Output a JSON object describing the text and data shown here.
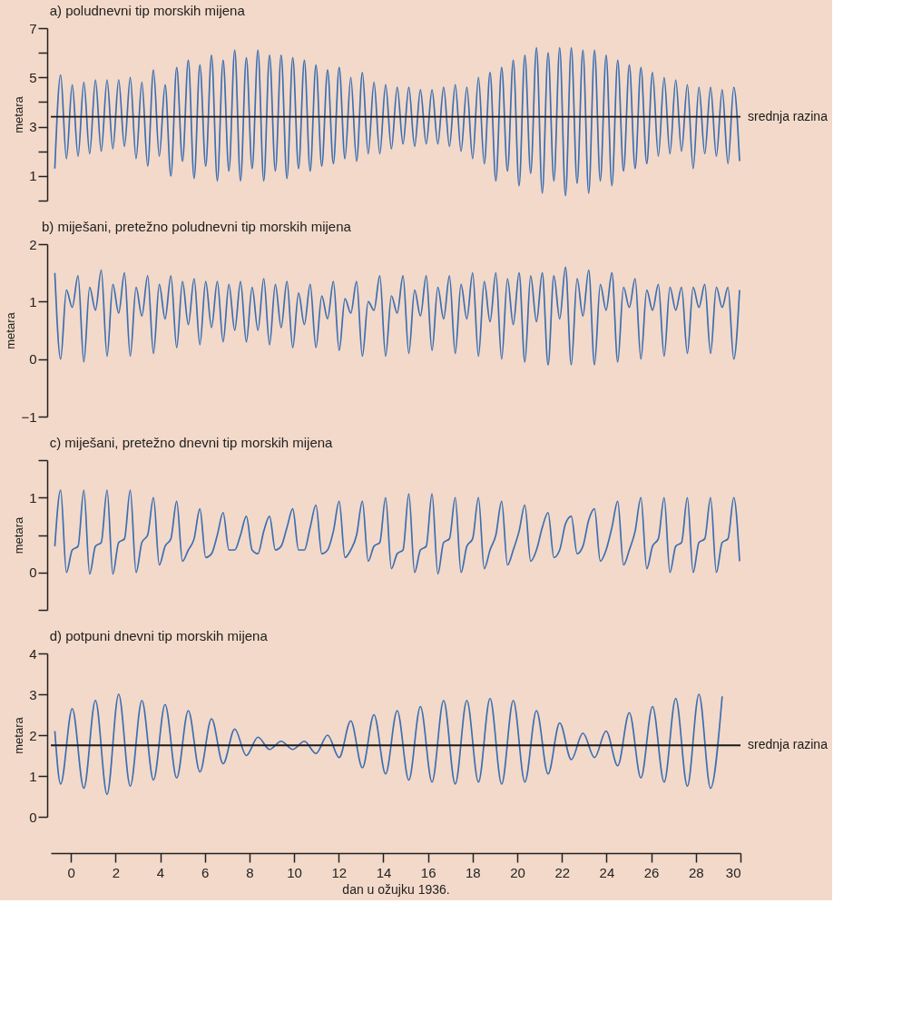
{
  "chart_data": [
    {
      "type": "line",
      "title": "a)  poludnevni tip morskih mijena",
      "ylabel": "metara",
      "xlim": [
        -0.9,
        30
      ],
      "ylim": [
        0,
        7
      ],
      "tick_labels": "y",
      "grid": false,
      "yticks": [
        {
          "value": 0,
          "label": null
        },
        1,
        {
          "value": 2,
          "label": null
        },
        3,
        {
          "value": 4,
          "label": null
        },
        5,
        {
          "value": 6,
          "label": null
        },
        7
      ],
      "x": [
        -0.72,
        -0.46,
        -0.2,
        0.06,
        0.32,
        0.58,
        0.84,
        1.1,
        1.36,
        1.62,
        1.88,
        2.14,
        2.4,
        2.66,
        2.92,
        3.18,
        3.44,
        3.7,
        3.96,
        4.22,
        4.48,
        4.74,
        5.0,
        5.26,
        5.52,
        5.78,
        6.04,
        6.3,
        6.56,
        6.82,
        7.08,
        7.34,
        7.6,
        7.86,
        8.12,
        8.38,
        8.64,
        8.9,
        9.16,
        9.42,
        9.68,
        9.94,
        10.2,
        10.46,
        10.72,
        10.98,
        11.24,
        11.5,
        11.76,
        12.02,
        12.28,
        12.54,
        12.8,
        13.06,
        13.32,
        13.58,
        13.84,
        14.1,
        14.36,
        14.62,
        14.88,
        15.14,
        15.4,
        15.66,
        15.92,
        16.18,
        16.44,
        16.7,
        16.96,
        17.22,
        17.48,
        17.74,
        18.0,
        18.26,
        18.52,
        18.78,
        19.04,
        19.3,
        19.56,
        19.82,
        20.08,
        20.34,
        20.6,
        20.86,
        21.12,
        21.38,
        21.64,
        21.9,
        22.16,
        22.42,
        22.68,
        22.94,
        23.2,
        23.46,
        23.72,
        23.98,
        24.24,
        24.5,
        24.76,
        25.02,
        25.28,
        25.54,
        25.8,
        26.06,
        26.32,
        26.58,
        26.84,
        27.1,
        27.36,
        27.62,
        27.88,
        28.14,
        28.4,
        28.66,
        28.92,
        29.18,
        29.44,
        29.7,
        29.96
      ],
      "series": [
        {
          "color": "#3b6fb3",
          "values": [
            1.3,
            5.1,
            1.7,
            4.7,
            1.8,
            4.8,
            1.9,
            4.9,
            2.0,
            4.9,
            2.1,
            4.9,
            2.2,
            5.0,
            1.7,
            4.8,
            1.4,
            5.3,
            1.8,
            4.7,
            1.0,
            5.4,
            1.6,
            5.7,
            0.9,
            5.5,
            1.4,
            5.9,
            0.8,
            5.7,
            1.2,
            6.1,
            0.8,
            5.8,
            1.3,
            6.1,
            0.8,
            5.9,
            1.2,
            5.9,
            0.9,
            5.8,
            1.3,
            5.7,
            1.2,
            5.5,
            1.4,
            5.3,
            1.5,
            5.4,
            1.7,
            5.0,
            1.6,
            5.2,
            1.9,
            4.8,
            1.9,
            4.7,
            2.1,
            4.6,
            2.3,
            4.6,
            2.2,
            4.5,
            2.3,
            4.5,
            2.3,
            4.6,
            2.2,
            4.7,
            2.0,
            4.6,
            1.7,
            5.0,
            1.5,
            5.2,
            0.8,
            5.4,
            1.2,
            5.7,
            0.6,
            5.9,
            1.1,
            6.2,
            0.3,
            6.0,
            0.8,
            6.2,
            0.2,
            6.2,
            0.7,
            6.1,
            0.3,
            6.1,
            0.8,
            5.9,
            0.6,
            5.7,
            1.2,
            5.5,
            1.3,
            5.4,
            1.5,
            5.2,
            1.8,
            5.0,
            1.9,
            4.9,
            2.0,
            4.7,
            1.3,
            4.6,
            1.9,
            4.6,
            1.8,
            4.5,
            1.5,
            4.6,
            1.6
          ]
        }
      ],
      "ref_lines": [
        {
          "axis": "y",
          "value": 3.4,
          "label": "srednja razina",
          "color": "#1a1a1a"
        }
      ]
    },
    {
      "type": "line",
      "title": "b)  miješani, pretežno poludnevni tip morskih mijena",
      "ylabel": "metara",
      "xlim": [
        -0.9,
        30
      ],
      "ylim": [
        -1,
        2
      ],
      "tick_labels": "y",
      "grid": false,
      "yticks": [
        -1,
        0,
        1,
        2
      ],
      "x": [
        -0.72,
        -0.46,
        -0.2,
        0.06,
        0.32,
        0.58,
        0.84,
        1.1,
        1.36,
        1.62,
        1.88,
        2.14,
        2.4,
        2.66,
        2.92,
        3.18,
        3.44,
        3.7,
        3.96,
        4.22,
        4.48,
        4.74,
        5.0,
        5.26,
        5.52,
        5.78,
        6.04,
        6.3,
        6.56,
        6.82,
        7.08,
        7.34,
        7.6,
        7.86,
        8.12,
        8.38,
        8.64,
        8.9,
        9.16,
        9.42,
        9.68,
        9.94,
        10.2,
        10.46,
        10.72,
        10.98,
        11.24,
        11.5,
        11.76,
        12.02,
        12.28,
        12.54,
        12.8,
        13.06,
        13.32,
        13.58,
        13.84,
        14.1,
        14.36,
        14.62,
        14.88,
        15.14,
        15.4,
        15.66,
        15.92,
        16.18,
        16.44,
        16.7,
        16.96,
        17.22,
        17.48,
        17.74,
        18.0,
        18.26,
        18.52,
        18.78,
        19.04,
        19.3,
        19.56,
        19.82,
        20.08,
        20.34,
        20.6,
        20.86,
        21.12,
        21.38,
        21.64,
        21.9,
        22.16,
        22.42,
        22.68,
        22.94,
        23.2,
        23.46,
        23.72,
        23.98,
        24.24,
        24.5,
        24.76,
        25.02,
        25.28,
        25.54,
        25.8,
        26.06,
        26.32,
        26.58,
        26.84,
        27.1,
        27.36,
        27.62,
        27.88,
        28.14,
        28.4,
        28.66,
        28.92,
        29.18,
        29.44,
        29.7,
        29.96
      ],
      "series": [
        {
          "color": "#3b6fb3",
          "values": [
            1.5,
            0.0,
            1.2,
            0.9,
            1.45,
            -0.05,
            1.25,
            0.85,
            1.55,
            0.05,
            1.3,
            0.8,
            1.5,
            0.05,
            1.25,
            0.75,
            1.45,
            0.1,
            1.3,
            0.7,
            1.45,
            0.2,
            1.35,
            0.6,
            1.4,
            0.25,
            1.35,
            0.55,
            1.35,
            0.3,
            1.3,
            0.5,
            1.35,
            0.3,
            1.25,
            0.5,
            1.4,
            0.25,
            1.3,
            0.55,
            1.35,
            0.2,
            1.15,
            0.6,
            1.3,
            0.2,
            1.1,
            0.7,
            1.35,
            0.15,
            1.05,
            0.8,
            1.35,
            0.05,
            1.0,
            0.85,
            1.45,
            0.05,
            1.1,
            0.8,
            1.45,
            0.1,
            1.2,
            0.75,
            1.45,
            0.15,
            1.25,
            0.7,
            1.45,
            0.1,
            1.3,
            0.7,
            1.5,
            0.05,
            1.35,
            0.65,
            1.5,
            0.0,
            1.4,
            0.6,
            1.5,
            -0.05,
            1.45,
            0.65,
            1.5,
            -0.1,
            1.45,
            0.7,
            1.6,
            -0.1,
            1.4,
            0.75,
            1.55,
            -0.1,
            1.3,
            0.85,
            1.5,
            -0.05,
            1.25,
            0.9,
            1.4,
            0.0,
            1.2,
            0.85,
            1.3,
            0.05,
            1.25,
            0.85,
            1.25,
            0.1,
            1.25,
            0.9,
            1.3,
            0.1,
            1.25,
            0.9,
            1.25,
            0.0,
            1.2
          ]
        }
      ]
    },
    {
      "type": "line",
      "title": "c)  miješani, pretežno dnevni tip morskih mijena",
      "ylabel": "metara",
      "xlim": [
        -0.9,
        30
      ],
      "ylim": [
        -0.5,
        1.5
      ],
      "tick_labels": "y",
      "grid": false,
      "yticks": [
        {
          "value": -0.5,
          "label": null
        },
        0,
        {
          "value": 0.5,
          "label": null
        },
        1,
        {
          "value": 1.5,
          "label": null
        }
      ],
      "x": [
        -0.72,
        -0.46,
        -0.2,
        0.06,
        0.32,
        0.58,
        0.84,
        1.1,
        1.36,
        1.62,
        1.88,
        2.14,
        2.4,
        2.66,
        2.92,
        3.18,
        3.44,
        3.7,
        3.96,
        4.22,
        4.48,
        4.74,
        5.0,
        5.26,
        5.52,
        5.78,
        6.04,
        6.3,
        6.56,
        6.82,
        7.08,
        7.34,
        7.6,
        7.86,
        8.12,
        8.38,
        8.64,
        8.9,
        9.16,
        9.42,
        9.68,
        9.94,
        10.2,
        10.46,
        10.72,
        10.98,
        11.24,
        11.5,
        11.76,
        12.02,
        12.28,
        12.54,
        12.8,
        13.06,
        13.32,
        13.58,
        13.84,
        14.1,
        14.36,
        14.62,
        14.88,
        15.14,
        15.4,
        15.66,
        15.92,
        16.18,
        16.44,
        16.7,
        16.96,
        17.22,
        17.48,
        17.74,
        18.0,
        18.26,
        18.52,
        18.78,
        19.04,
        19.3,
        19.56,
        19.82,
        20.08,
        20.34,
        20.6,
        20.86,
        21.12,
        21.38,
        21.64,
        21.9,
        22.16,
        22.42,
        22.68,
        22.94,
        23.2,
        23.46,
        23.72,
        23.98,
        24.24,
        24.5,
        24.76,
        25.02,
        25.28,
        25.54,
        25.8,
        26.06,
        26.32,
        26.58,
        26.84,
        27.1,
        27.36,
        27.62,
        27.88,
        28.14,
        28.4,
        28.66,
        28.92,
        29.18,
        29.44,
        29.7,
        29.96
      ],
      "series": [
        {
          "color": "#3b6fb3",
          "values": [
            0.35,
            1.1,
            0.0,
            0.3,
            0.35,
            1.1,
            -0.02,
            0.35,
            0.4,
            1.1,
            -0.02,
            0.4,
            0.45,
            1.1,
            0.0,
            0.4,
            0.5,
            1.0,
            0.1,
            0.35,
            0.45,
            0.95,
            0.15,
            0.3,
            0.45,
            0.85,
            0.2,
            0.25,
            0.5,
            0.8,
            0.3,
            0.3,
            0.5,
            0.75,
            0.3,
            0.25,
            0.55,
            0.75,
            0.3,
            0.35,
            0.6,
            0.85,
            0.3,
            0.3,
            0.6,
            0.9,
            0.25,
            0.3,
            0.55,
            0.95,
            0.2,
            0.3,
            0.5,
            0.95,
            0.15,
            0.35,
            0.4,
            1.0,
            0.05,
            0.25,
            0.3,
            1.05,
            0.0,
            0.3,
            0.35,
            1.05,
            -0.02,
            0.4,
            0.45,
            1.0,
            0.0,
            0.35,
            0.45,
            1.0,
            0.05,
            0.3,
            0.5,
            0.95,
            0.1,
            0.3,
            0.55,
            0.9,
            0.15,
            0.3,
            0.6,
            0.8,
            0.2,
            0.3,
            0.65,
            0.75,
            0.25,
            0.35,
            0.7,
            0.85,
            0.15,
            0.3,
            0.6,
            0.95,
            0.1,
            0.3,
            0.55,
            1.0,
            0.05,
            0.35,
            0.45,
            1.0,
            0.0,
            0.35,
            0.4,
            1.0,
            0.0,
            0.4,
            0.45,
            1.0,
            0.0,
            0.4,
            0.45,
            1.0,
            0.15
          ]
        }
      ]
    },
    {
      "type": "line",
      "title": "d)  potpuni dnevni tip morskih mijena",
      "ylabel": "metara",
      "xlabel": "dan u ožujku 1936.",
      "xlim": [
        -0.9,
        30
      ],
      "ylim": [
        0,
        4
      ],
      "grid": false,
      "yticks": [
        0,
        1,
        2,
        3,
        4
      ],
      "xticks": [
        0,
        2,
        4,
        6,
        8,
        10,
        12,
        14,
        16,
        18,
        20,
        22,
        24,
        26,
        28,
        30
      ],
      "x": [
        -0.72,
        -0.46,
        0.06,
        0.58,
        1.1,
        1.62,
        2.14,
        2.66,
        3.18,
        3.7,
        4.22,
        4.74,
        5.26,
        5.78,
        6.3,
        6.82,
        7.34,
        7.86,
        8.38,
        8.9,
        9.42,
        9.94,
        10.46,
        10.98,
        11.5,
        12.02,
        12.54,
        13.06,
        13.58,
        14.1,
        14.62,
        15.14,
        15.66,
        16.18,
        16.7,
        17.22,
        17.74,
        18.26,
        18.78,
        19.3,
        19.82,
        20.34,
        20.86,
        21.38,
        21.9,
        22.42,
        22.94,
        23.46,
        23.98,
        24.5,
        25.02,
        25.54,
        26.06,
        26.58,
        27.1,
        27.62,
        28.14,
        28.66,
        29.18
      ],
      "series": [
        {
          "color": "#3b6fb3",
          "values": [
            2.1,
            0.8,
            2.65,
            0.7,
            2.85,
            0.55,
            3.0,
            0.75,
            2.85,
            0.9,
            2.75,
            0.95,
            2.6,
            1.1,
            2.4,
            1.3,
            2.15,
            1.5,
            1.95,
            1.65,
            1.85,
            1.65,
            1.85,
            1.55,
            2.0,
            1.45,
            2.35,
            1.2,
            2.5,
            1.05,
            2.6,
            0.9,
            2.7,
            0.85,
            2.85,
            0.8,
            2.85,
            0.85,
            2.9,
            0.8,
            2.85,
            0.85,
            2.6,
            1.05,
            2.3,
            1.4,
            2.05,
            1.45,
            2.1,
            1.25,
            2.55,
            0.95,
            2.7,
            0.85,
            2.9,
            0.75,
            3.0,
            0.7,
            2.95
          ]
        }
      ],
      "ref_lines": [
        {
          "axis": "y",
          "value": 1.75,
          "label": "srednja razina",
          "color": "#1a1a1a"
        }
      ]
    }
  ]
}
